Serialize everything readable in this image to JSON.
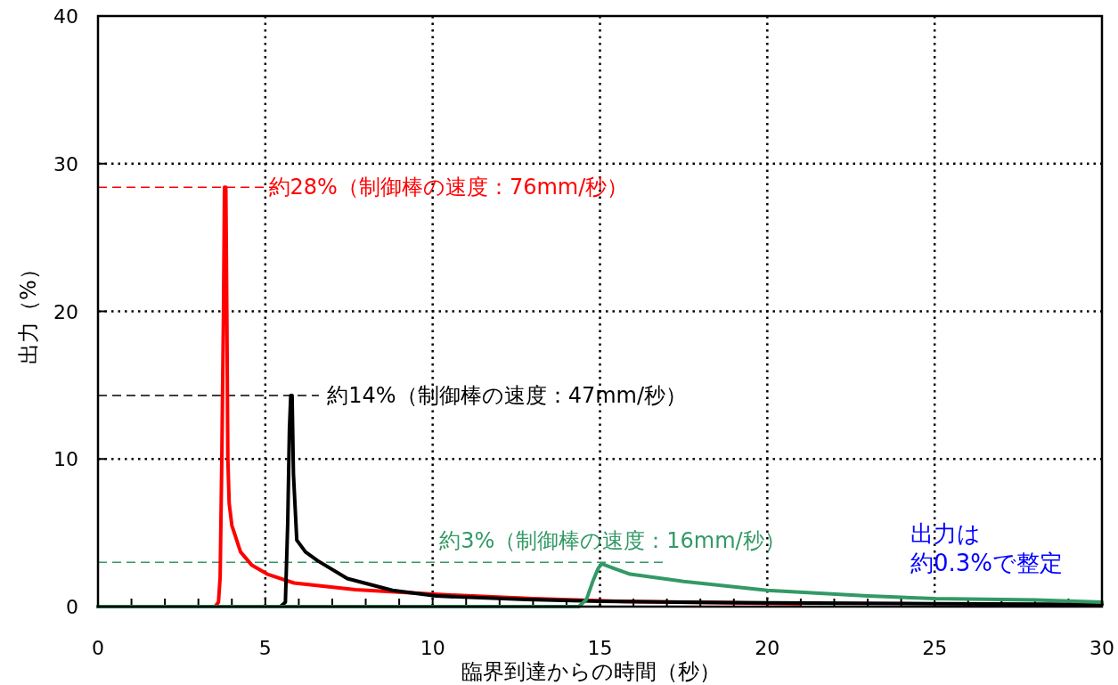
{
  "chart_data": {
    "type": "line",
    "xlabel": "臨界到達からの時間（秒）",
    "ylabel": "出力（%）",
    "xlim": [
      0,
      30
    ],
    "ylim": [
      0,
      40
    ],
    "xticks": [
      0,
      5,
      10,
      15,
      20,
      25,
      30
    ],
    "yticks": [
      0,
      10,
      20,
      30,
      40
    ],
    "grid": true,
    "line_style": "solid",
    "series": [
      {
        "color": "#ff0000",
        "x": [
          0,
          3.5,
          3.6,
          3.65,
          3.7,
          3.75,
          3.78,
          3.82,
          3.85,
          3.88,
          3.92,
          4.0,
          4.26,
          4.6,
          5.06,
          5.86,
          7.7,
          10.4,
          13,
          15.7,
          21
        ],
        "values": [
          0,
          0,
          0.3,
          2,
          10,
          20,
          28.4,
          28.4,
          20,
          10,
          7,
          5.5,
          3.7,
          2.8,
          2.2,
          1.6,
          1.15,
          0.8,
          0.55,
          0.35,
          0.2
        ]
      },
      {
        "color": "#000000",
        "x": [
          0,
          5.45,
          5.6,
          5.67,
          5.72,
          5.76,
          5.8,
          5.84,
          5.94,
          6.2,
          6.57,
          7.45,
          8.8,
          10.1,
          12.8,
          15,
          20,
          25,
          30
        ],
        "values": [
          0,
          0,
          0.3,
          5.7,
          12,
          14.3,
          14.3,
          9,
          4.5,
          3.7,
          3.1,
          1.9,
          1.1,
          0.72,
          0.48,
          0.36,
          0.25,
          0.2,
          0.15
        ]
      },
      {
        "color": "#339966",
        "x": [
          0,
          14.37,
          14.6,
          14.8,
          14.95,
          15.05,
          15.4,
          15.9,
          17.5,
          20,
          23,
          25,
          28,
          30
        ],
        "values": [
          0,
          0,
          0.5,
          1.8,
          2.6,
          2.9,
          2.6,
          2.2,
          1.7,
          1.1,
          0.72,
          0.55,
          0.45,
          0.3
        ]
      }
    ],
    "ref_lines": [
      {
        "axis": "y",
        "value": 28.4,
        "label": "約28%（制御棒の速度：76mm/秒）",
        "color": "#ff0000",
        "line_style": "dashed"
      },
      {
        "axis": "y",
        "value": 14.3,
        "label": "約14%（制御棒の速度：47mm/秒）",
        "color": "#000000",
        "line_style": "dashed"
      },
      {
        "axis": "y",
        "value": 3,
        "label": "約3%（制御棒の速度：16mm/秒）",
        "color": "#339966",
        "line_style": "dashed"
      }
    ],
    "annotations": [
      "出力は",
      "約0.3%で整定"
    ]
  }
}
